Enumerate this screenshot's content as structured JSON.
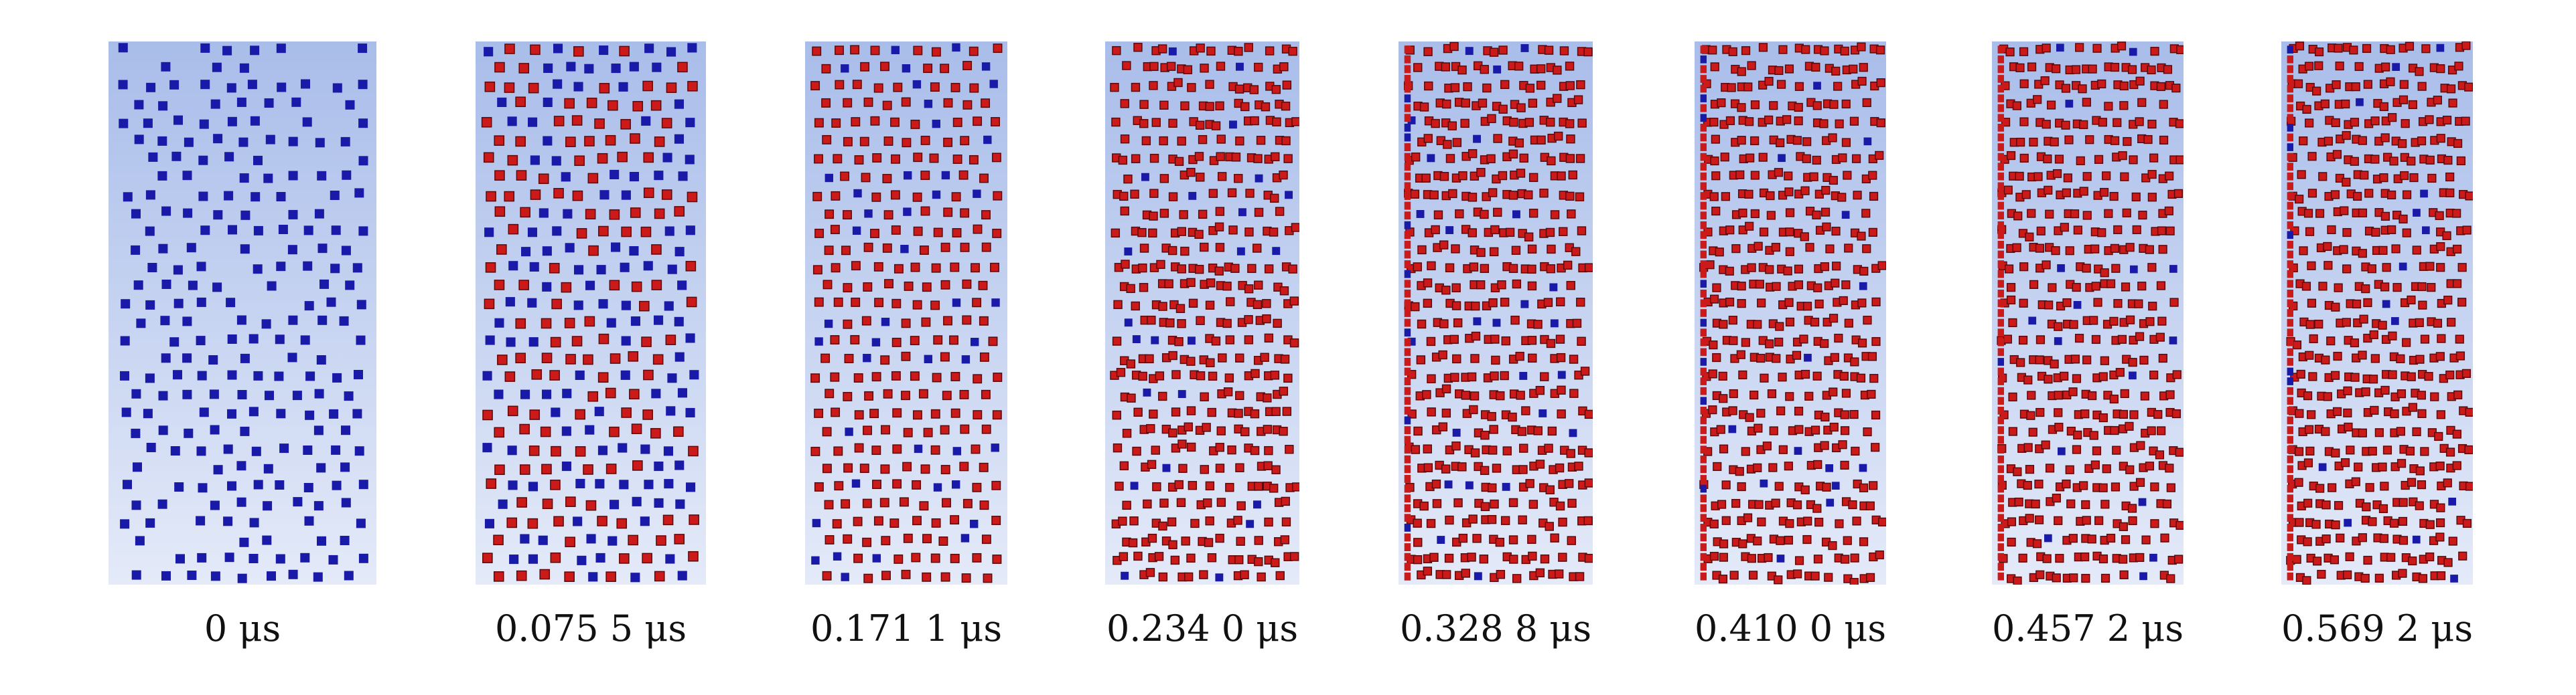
{
  "figure": {
    "colors": {
      "background_top": "#a9bdea",
      "background_bottom": "#e4eaf8",
      "particle_initial": "#1a1aa8",
      "particle_transformed": "#cc1a1a",
      "particle_outline": "#5a0a0a"
    },
    "panels": [
      {
        "time_label": "0 μs",
        "transformed_fraction": 0.0
      },
      {
        "time_label": "0.075 5 μs",
        "transformed_fraction": 0.58
      },
      {
        "time_label": "0.171 1 μs",
        "transformed_fraction": 0.85
      },
      {
        "time_label": "0.234 0 μs",
        "transformed_fraction": 0.9
      },
      {
        "time_label": "0.328 8 μs",
        "transformed_fraction": 0.92
      },
      {
        "time_label": "0.410 0 μs",
        "transformed_fraction": 0.93
      },
      {
        "time_label": "0.457 2 μs",
        "transformed_fraction": 0.94
      },
      {
        "time_label": "0.569 2 μs",
        "transformed_fraction": 0.94
      }
    ]
  }
}
